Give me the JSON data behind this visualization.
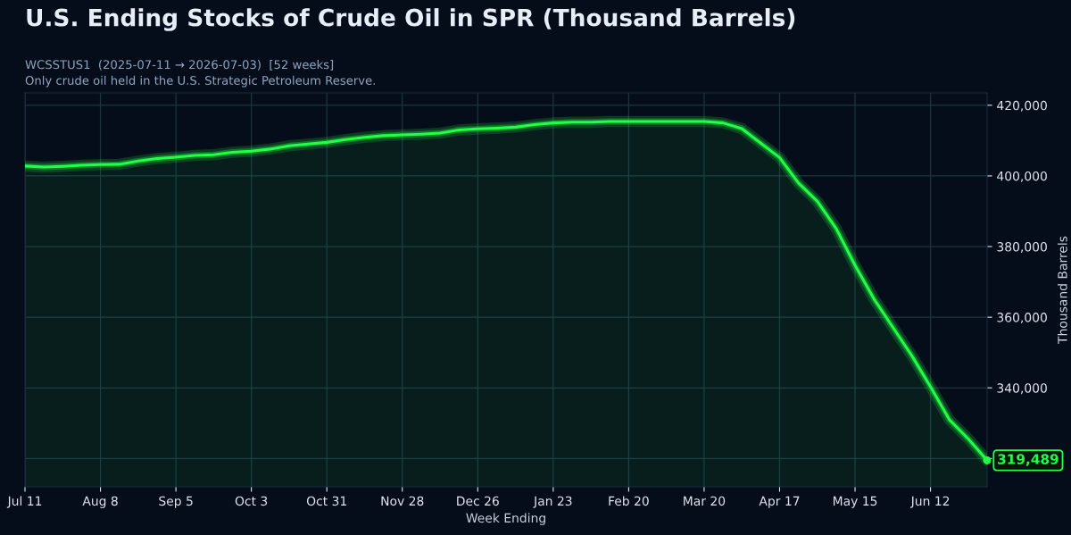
{
  "chart_data": {
    "type": "area",
    "title": "U.S. Ending Stocks of Crude Oil in SPR (Thousand Barrels)",
    "subtitle": "WCSSTUS1  (2025-07-11 → 2026-07-03)  [52 weeks]\nOnly crude oil held in the U.S. Strategic Petroleum Reserve.",
    "xlabel": "Week Ending",
    "ylabel": "Thousand Barrels",
    "x": [
      "2025-07-11",
      "2025-07-18",
      "2025-07-25",
      "2025-08-01",
      "2025-08-08",
      "2025-08-15",
      "2025-08-22",
      "2025-08-29",
      "2025-09-05",
      "2025-09-12",
      "2025-09-19",
      "2025-09-26",
      "2025-10-03",
      "2025-10-10",
      "2025-10-17",
      "2025-10-24",
      "2025-10-31",
      "2025-11-07",
      "2025-11-14",
      "2025-11-21",
      "2025-11-28",
      "2025-12-05",
      "2025-12-12",
      "2025-12-19",
      "2025-12-26",
      "2026-01-02",
      "2026-01-09",
      "2026-01-16",
      "2026-01-23",
      "2026-01-30",
      "2026-02-06",
      "2026-02-13",
      "2026-02-20",
      "2026-02-27",
      "2026-03-06",
      "2026-03-13",
      "2026-03-20",
      "2026-03-27",
      "2026-04-03",
      "2026-04-10",
      "2026-04-17",
      "2026-04-24",
      "2026-05-01",
      "2026-05-08",
      "2026-05-15",
      "2026-05-22",
      "2026-05-29",
      "2026-06-05",
      "2026-06-12",
      "2026-06-19",
      "2026-06-26",
      "2026-07-03"
    ],
    "series": [
      {
        "color": "#22ff44",
        "values": [
          402800,
          402500,
          402700,
          403000,
          403200,
          403300,
          404200,
          404900,
          405300,
          405800,
          406000,
          406700,
          407000,
          407600,
          408500,
          409000,
          409500,
          410300,
          410900,
          411400,
          411600,
          411800,
          412100,
          413000,
          413300,
          413500,
          413800,
          414500,
          415000,
          415200,
          415200,
          415400,
          415400,
          415400,
          415400,
          415400,
          415400,
          415000,
          413400,
          409300,
          405200,
          398000,
          392800,
          385100,
          374700,
          365200,
          357200,
          349200,
          340300,
          331000,
          325600,
          319489
        ]
      }
    ],
    "xlim": [
      "2025-07-11",
      "2026-07-03"
    ],
    "xticks": [
      {
        "value": "2025-07-11",
        "label": "Jul 11"
      },
      {
        "value": "2025-08-08",
        "label": "Aug 8"
      },
      {
        "value": "2025-09-05",
        "label": "Sep 5"
      },
      {
        "value": "2025-10-03",
        "label": "Oct 3"
      },
      {
        "value": "2025-10-31",
        "label": "Oct 31"
      },
      {
        "value": "2025-11-28",
        "label": "Nov 28"
      },
      {
        "value": "2025-12-26",
        "label": "Dec 26"
      },
      {
        "value": "2026-01-23",
        "label": "Jan 23"
      },
      {
        "value": "2026-02-20",
        "label": "Feb 20"
      },
      {
        "value": "2026-03-20",
        "label": "Mar 20"
      },
      {
        "value": "2026-04-17",
        "label": "Apr 17"
      },
      {
        "value": "2026-05-15",
        "label": "May 15"
      },
      {
        "value": "2026-06-12",
        "label": "Jun 12"
      }
    ],
    "ylim": [
      312000,
      423500
    ],
    "yticks": [
      {
        "value": 320000,
        "label": null
      },
      {
        "value": 340000,
        "label": "340,000"
      },
      {
        "value": 360000,
        "label": "360,000"
      },
      {
        "value": 380000,
        "label": "380,000"
      },
      {
        "value": 400000,
        "label": "400,000"
      },
      {
        "value": 420000,
        "label": "420,000"
      }
    ],
    "grid": true,
    "annotations": [
      {
        "text": "319,489",
        "x": "2026-07-03",
        "y": 319489
      }
    ]
  }
}
